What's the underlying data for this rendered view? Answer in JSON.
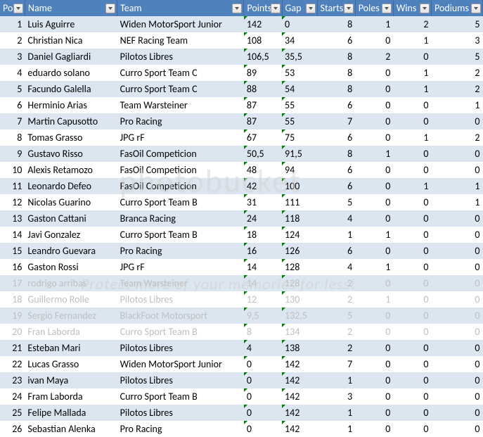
{
  "watermark": {
    "main": "photobucket",
    "sub": "Protect more of your memories for less!"
  },
  "headers": {
    "pos": "Pos",
    "name": "Name",
    "team": "Team",
    "points": "Points",
    "gap": "Gap",
    "starts": "Starts",
    "poles": "Poles",
    "wins": "Wins",
    "podiums": "Podiums"
  },
  "rows": [
    {
      "pos": "1",
      "name": "Luis Aguirre",
      "team": "Widen MotorSport Junior",
      "points": "142",
      "gap": "0",
      "starts": "8",
      "poles": "1",
      "wins": "2",
      "podiums": "5",
      "faded": false
    },
    {
      "pos": "2",
      "name": "Christian Nica",
      "team": "NEF Racing Team",
      "points": "108",
      "gap": "34",
      "starts": "6",
      "poles": "0",
      "wins": "1",
      "podiums": "3",
      "faded": false
    },
    {
      "pos": "3",
      "name": "Daniel Gagliardi",
      "team": "Pilotos Libres",
      "points": "106,5",
      "gap": "35,5",
      "starts": "8",
      "poles": "2",
      "wins": "0",
      "podiums": "5",
      "faded": false
    },
    {
      "pos": "4",
      "name": "eduardo solano",
      "team": "Curro Sport Team C",
      "points": "89",
      "gap": "53",
      "starts": "8",
      "poles": "0",
      "wins": "1",
      "podiums": "2",
      "faded": false
    },
    {
      "pos": "5",
      "name": "Facundo Galella",
      "team": "Curro Sport Team C",
      "points": "88",
      "gap": "54",
      "starts": "8",
      "poles": "0",
      "wins": "1",
      "podiums": "2",
      "faded": false
    },
    {
      "pos": "6",
      "name": "Herminio Arias",
      "team": "Team Warsteiner",
      "points": "87",
      "gap": "55",
      "starts": "6",
      "poles": "0",
      "wins": "0",
      "podiums": "1",
      "faded": false
    },
    {
      "pos": "7",
      "name": "Martin Capusotto",
      "team": "Pro Racing",
      "points": "87",
      "gap": "55",
      "starts": "7",
      "poles": "0",
      "wins": "0",
      "podiums": "0",
      "faded": false
    },
    {
      "pos": "8",
      "name": "Tomas Grasso",
      "team": "JPG rF",
      "points": "67",
      "gap": "75",
      "starts": "6",
      "poles": "0",
      "wins": "1",
      "podiums": "2",
      "faded": false
    },
    {
      "pos": "9",
      "name": "Gustavo Risso",
      "team": "FasOil Competicion",
      "points": "50,5",
      "gap": "91,5",
      "starts": "8",
      "poles": "1",
      "wins": "0",
      "podiums": "0",
      "faded": false
    },
    {
      "pos": "10",
      "name": "Alexis Retamozo",
      "team": "FasOil Competicion",
      "points": "48",
      "gap": "94",
      "starts": "6",
      "poles": "0",
      "wins": "0",
      "podiums": "0",
      "faded": false
    },
    {
      "pos": "11",
      "name": "Leonardo Defeo",
      "team": "FasOil Competicion",
      "points": "42",
      "gap": "100",
      "starts": "6",
      "poles": "0",
      "wins": "1",
      "podiums": "1",
      "faded": false
    },
    {
      "pos": "12",
      "name": "Nicolas Guarino",
      "team": "Curro Sport Team B",
      "points": "31",
      "gap": "111",
      "starts": "5",
      "poles": "0",
      "wins": "0",
      "podiums": "1",
      "faded": false
    },
    {
      "pos": "13",
      "name": "Gaston Cattani",
      "team": "Branca Racing",
      "points": "24",
      "gap": "118",
      "starts": "4",
      "poles": "0",
      "wins": "0",
      "podiums": "0",
      "faded": false
    },
    {
      "pos": "14",
      "name": "Javi Gonzalez",
      "team": "Curro Sport Team B",
      "points": "18",
      "gap": "124",
      "starts": "1",
      "poles": "1",
      "wins": "0",
      "podiums": "0",
      "faded": false
    },
    {
      "pos": "15",
      "name": "Leandro Guevara",
      "team": "Pro Racing",
      "points": "16",
      "gap": "126",
      "starts": "6",
      "poles": "0",
      "wins": "0",
      "podiums": "0",
      "faded": false
    },
    {
      "pos": "16",
      "name": "Gaston Rossi",
      "team": "JPG rF",
      "points": "14",
      "gap": "128",
      "starts": "4",
      "poles": "1",
      "wins": "0",
      "podiums": "0",
      "faded": false
    },
    {
      "pos": "17",
      "name": "rodrigo arribas",
      "team": "Team Warsteiner",
      "points": "14",
      "gap": "128",
      "starts": "2",
      "poles": "0",
      "wins": "0",
      "podiums": "0",
      "faded": true
    },
    {
      "pos": "18",
      "name": "Guillermo Rolle",
      "team": "Pilotos Libres",
      "points": "12",
      "gap": "130",
      "starts": "2",
      "poles": "1",
      "wins": "0",
      "podiums": "0",
      "faded": true
    },
    {
      "pos": "19",
      "name": "Sergio Fernandez",
      "team": "BlackFoot Motorsport",
      "points": "9,5",
      "gap": "132,5",
      "starts": "5",
      "poles": "0",
      "wins": "0",
      "podiums": "0",
      "faded": true
    },
    {
      "pos": "20",
      "name": "Fran Laborda",
      "team": "Curro Sport Team B",
      "points": "8",
      "gap": "134",
      "starts": "2",
      "poles": "0",
      "wins": "0",
      "podiums": "0",
      "faded": true
    },
    {
      "pos": "21",
      "name": "Esteban Mari",
      "team": "Pilotos Libres",
      "points": "4",
      "gap": "138",
      "starts": "2",
      "poles": "0",
      "wins": "0",
      "podiums": "0",
      "faded": false
    },
    {
      "pos": "22",
      "name": "Lucas Grasso",
      "team": "Widen MotorSport Junior",
      "points": "0",
      "gap": "142",
      "starts": "7",
      "poles": "0",
      "wins": "0",
      "podiums": "0",
      "faded": false
    },
    {
      "pos": "23",
      "name": "ivan Maya",
      "team": "Pilotos Libres",
      "points": "0",
      "gap": "142",
      "starts": "1",
      "poles": "0",
      "wins": "0",
      "podiums": "0",
      "faded": false
    },
    {
      "pos": "24",
      "name": "Fram Laborda",
      "team": "Curro Sport Team B",
      "points": "0",
      "gap": "142",
      "starts": "3",
      "poles": "0",
      "wins": "0",
      "podiums": "0",
      "faded": false
    },
    {
      "pos": "25",
      "name": "Felipe Mallada",
      "team": "Pilotos Libres",
      "points": "0",
      "gap": "142",
      "starts": "1",
      "poles": "0",
      "wins": "0",
      "podiums": "0",
      "faded": false
    },
    {
      "pos": "26",
      "name": "Sebastian Alenka",
      "team": "Pro Racing",
      "points": "0",
      "gap": "142",
      "starts": "1",
      "poles": "0",
      "wins": "0",
      "podiums": "0",
      "faded": false
    }
  ]
}
